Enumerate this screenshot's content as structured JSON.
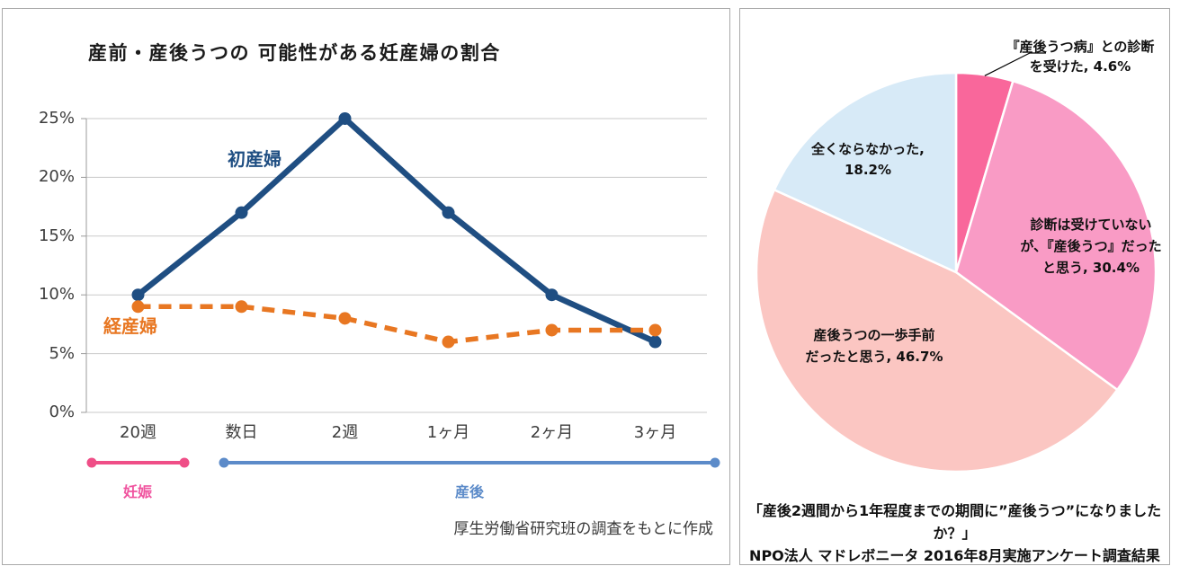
{
  "chart_data": [
    {
      "type": "line",
      "title": "産前・産後うつの 可能性がある妊産婦の割合",
      "categories": [
        "20週",
        "数日",
        "2週",
        "1ヶ月",
        "2ヶ月",
        "3ヶ月"
      ],
      "series": [
        {
          "name": "初産婦",
          "values": [
            10,
            17,
            25,
            17,
            10,
            6
          ],
          "color": "#1F4E82",
          "style": "solid"
        },
        {
          "name": "経産婦",
          "values": [
            9,
            9,
            8,
            6,
            7,
            7
          ],
          "color": "#E87722",
          "style": "dashed"
        }
      ],
      "xlabel": "",
      "ylabel": "",
      "ylim": [
        0,
        25
      ],
      "ytick_step": 5,
      "ytick_labels": [
        "0%",
        "5%",
        "10%",
        "15%",
        "20%",
        "25%"
      ],
      "grid": true,
      "legend_position": "inline-labels",
      "period_brackets": [
        {
          "label": "妊娠",
          "categories_span": [
            0,
            0
          ],
          "color": "#EF4E87"
        },
        {
          "label": "産後",
          "categories_span": [
            1,
            5
          ],
          "color": "#5C8BC9"
        }
      ],
      "source_note": "厚生労働省研究班の調査をもとに作成"
    },
    {
      "type": "pie",
      "start_angle_deg": 0,
      "direction": "clockwise",
      "slices": [
        {
          "name": "『産後うつ病』との診断を受けた",
          "value": 4.6,
          "color": "#F9679B",
          "leader": true,
          "label_lines": [
            "『産後うつ病』との診断",
            "を受けた, 4.6%"
          ]
        },
        {
          "name": "診断は受けていないが、『産後うつ』だったと思う",
          "value": 30.4,
          "color": "#F99BC5",
          "label_lines": [
            "診断は受けていない",
            "が、『産後うつ』だった",
            "と思う, 30.4%"
          ]
        },
        {
          "name": "産後うつの一歩手前だったと思う",
          "value": 46.7,
          "color": "#FBC6C2",
          "label_lines": [
            "産後うつの一歩手前",
            "だったと思う, 46.7%"
          ]
        },
        {
          "name": "全くならなかった",
          "value": 18.2,
          "color": "#D7EAF7",
          "label_lines": [
            "全くならなかった,",
            "18.2%"
          ]
        }
      ],
      "caption_lines": [
        "「産後2週間から1年程度までの期間に”産後うつ”になりましたか？」",
        "NPO法人 マドレボニータ 2016年8月実施アンケート調査結果"
      ]
    }
  ]
}
